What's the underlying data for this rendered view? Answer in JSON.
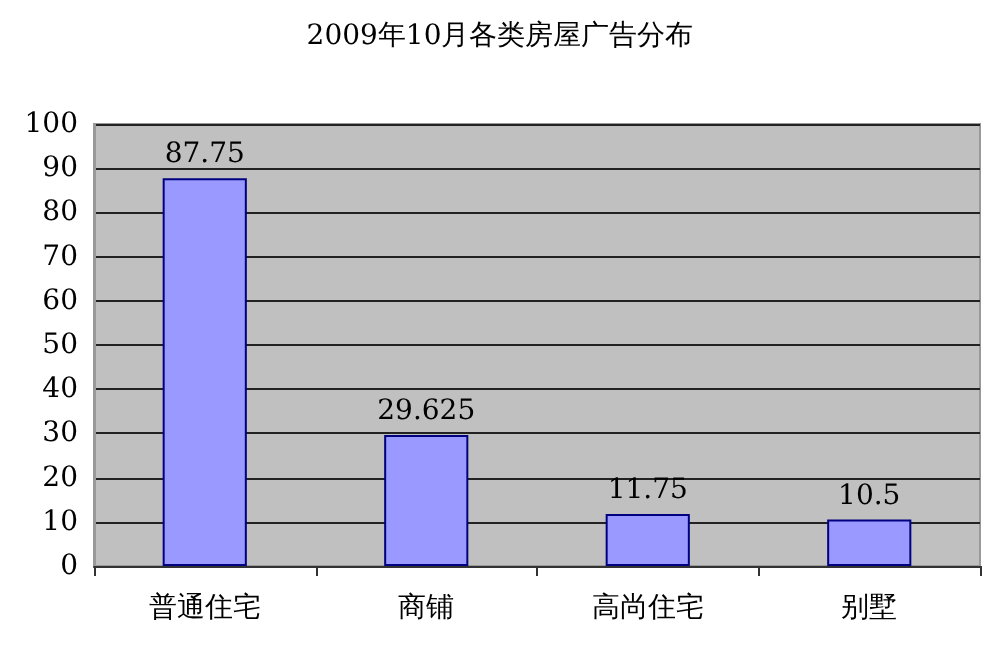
{
  "chart_data": {
    "type": "bar",
    "title": "2009年10月各类房屋广告分布",
    "categories": [
      "普通住宅",
      "商铺",
      "高尚住宅",
      "别墅"
    ],
    "values": [
      87.75,
      29.625,
      11.75,
      10.5
    ],
    "color": "#9999ff",
    "ylim": [
      0,
      100
    ],
    "yticks": [
      0,
      10,
      20,
      30,
      40,
      50,
      60,
      70,
      80,
      90,
      100
    ],
    "grid": "y",
    "data_labels": true
  }
}
